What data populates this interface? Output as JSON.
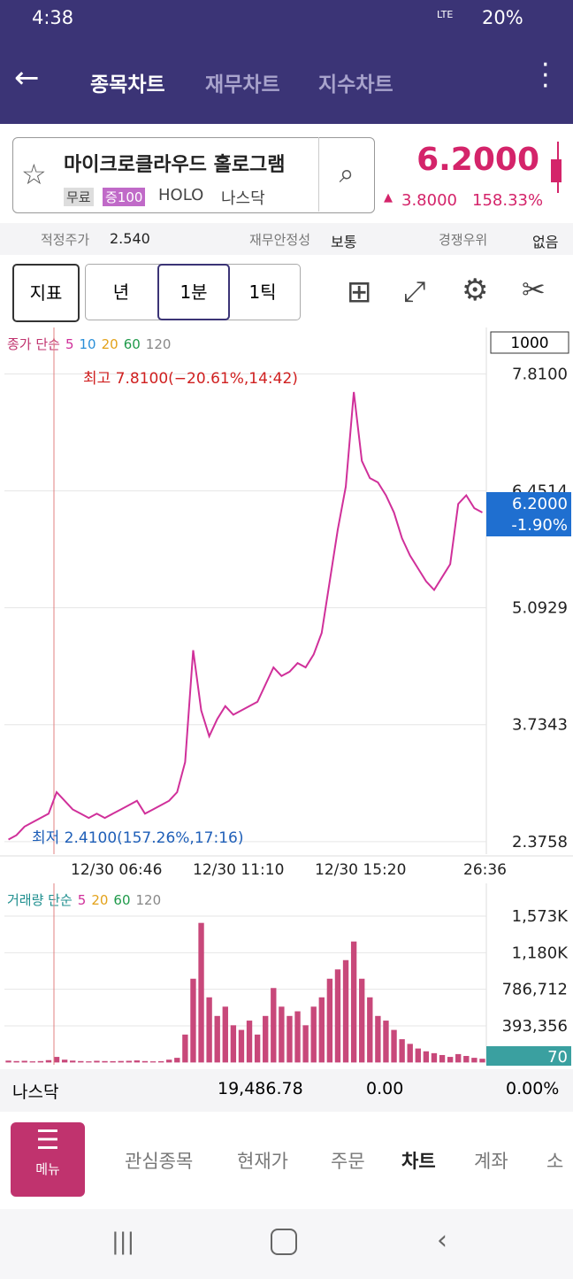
{
  "status_bar": {
    "time": "4:38",
    "network": "LTE",
    "battery": "20%"
  },
  "header": {
    "tabs": [
      "종목차트",
      "재무차트",
      "지수차트"
    ]
  },
  "stock": {
    "name": "마이크로클라우드 홀로그램",
    "tags": [
      "무료",
      "증100"
    ],
    "ticker": "HOLO",
    "market": "나스닥",
    "price": "6.2000",
    "change": "3.8000",
    "change_pct": "158.33%"
  },
  "info_bar": {
    "items": [
      {
        "label": "적정주가",
        "value": "2.540"
      },
      {
        "label": "재무안정성",
        "value": "보통"
      },
      {
        "label": "경쟁우위",
        "value": "없음"
      }
    ]
  },
  "toolbar": {
    "buttons": [
      "지표",
      "년",
      "1분",
      "1틱"
    ]
  },
  "price_chart": {
    "type": "line",
    "legend_title": "종가 단순",
    "ma_labels": [
      {
        "text": "5",
        "color": "#d0309a"
      },
      {
        "text": "10",
        "color": "#2a8fd8"
      },
      {
        "text": "20",
        "color": "#e3a21a"
      },
      {
        "text": "60",
        "color": "#1f9a4a"
      },
      {
        "text": "120",
        "color": "#888888"
      }
    ],
    "unit_box": "1000",
    "high_note": "최고 7.8100(−20.61%,14:42)",
    "low_note": "최저 2.4100(157.26%,17:16)",
    "current_price": "6.2000",
    "current_change": "-1.90%",
    "color": "#d0309a",
    "values": [
      2.4,
      2.45,
      2.55,
      2.6,
      2.65,
      2.7,
      2.95,
      2.85,
      2.75,
      2.7,
      2.65,
      2.7,
      2.65,
      2.7,
      2.75,
      2.8,
      2.85,
      2.7,
      2.75,
      2.8,
      2.85,
      2.95,
      3.3,
      4.6,
      3.9,
      3.6,
      3.8,
      3.95,
      3.85,
      3.9,
      3.95,
      4.0,
      4.2,
      4.4,
      4.3,
      4.35,
      4.45,
      4.4,
      4.55,
      4.8,
      5.4,
      6.0,
      6.5,
      7.6,
      6.8,
      6.6,
      6.55,
      6.4,
      6.2,
      5.9,
      5.7,
      5.55,
      5.4,
      5.3,
      5.45,
      5.6,
      6.3,
      6.4,
      6.25,
      6.2
    ],
    "ylim": [
      2.23,
      8.35
    ],
    "yticks": [
      {
        "value": 7.81,
        "label": "7.8100"
      },
      6.4514,
      5.0929,
      3.7343,
      2.3758
    ],
    "xtick_labels": [
      "12/30 06:46",
      "12/30 11:10",
      "12/30 15:20",
      "26:36"
    ]
  },
  "volume_chart": {
    "type": "bar",
    "legend_title": "거래량 단순",
    "ma_labels": [
      {
        "text": "5",
        "color": "#d0309a"
      },
      {
        "text": "20",
        "color": "#e3a21a"
      },
      {
        "text": "60",
        "color": "#1f9a4a"
      },
      {
        "text": "120",
        "color": "#888888"
      }
    ],
    "color": "#c8487a",
    "badge": "70",
    "values": [
      20000,
      15000,
      18000,
      12000,
      15000,
      25000,
      60000,
      30000,
      20000,
      15000,
      12000,
      18000,
      15000,
      14000,
      16000,
      18000,
      22000,
      15000,
      12000,
      14000,
      30000,
      50000,
      300000,
      900000,
      1500000,
      700000,
      500000,
      600000,
      400000,
      350000,
      450000,
      300000,
      500000,
      800000,
      600000,
      500000,
      550000,
      400000,
      600000,
      700000,
      900000,
      1000000,
      1100000,
      1300000,
      900000,
      700000,
      500000,
      450000,
      350000,
      250000,
      200000,
      150000,
      120000,
      100000,
      80000,
      60000,
      90000,
      70000,
      50000,
      40000
    ],
    "ylim": [
      -25000,
      1925000
    ],
    "yticks": [
      {
        "value": 1573000,
        "label": "1,573K"
      },
      {
        "value": 1180000,
        "label": "1,180K"
      },
      {
        "value": 786712,
        "label": "786,712"
      },
      {
        "value": 393356,
        "label": "393,356"
      }
    ]
  },
  "index_bar": {
    "name": "나스닥",
    "value": "19,486.78",
    "change": "0.00",
    "change_pct": "0.00%"
  },
  "bottom_nav": {
    "menu": "메뉴",
    "items": [
      "관심종목",
      "현재가",
      "주문",
      "차트",
      "계좌",
      "소"
    ]
  }
}
